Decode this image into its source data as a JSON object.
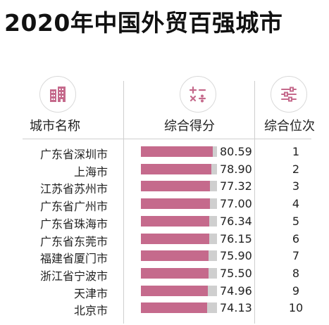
{
  "title": "2020年中国外贸百强城市",
  "icons": {
    "city": "city-buildings-icon",
    "score": "math-operators-icon",
    "rank": "sliders-icon"
  },
  "colors": {
    "bar": "#c56a8c",
    "track": "#cfcfcf",
    "icon": "#c56a8c"
  },
  "headers": {
    "city": "城市名称",
    "score": "综合得分",
    "rank": "综合位次"
  },
  "chart_data": {
    "type": "bar",
    "title": "2020年中国外贸百强城市",
    "orientation": "horizontal",
    "categories": [
      "广东省深圳市",
      "上海市",
      "江苏省苏州市",
      "广东省广州市",
      "广东省珠海市",
      "广东省东莞市",
      "福建省厦门市",
      "浙江省宁波市",
      "天津市",
      "北京市"
    ],
    "values": [
      80.59,
      78.9,
      77.32,
      77.0,
      76.34,
      76.15,
      75.9,
      75.5,
      74.96,
      74.13
    ],
    "value_labels": [
      "80.59",
      "78.90",
      "77.32",
      "77.00",
      "76.34",
      "76.15",
      "75.90",
      "75.50",
      "74.96",
      "74.13"
    ],
    "ranks": [
      "1",
      "2",
      "3",
      "4",
      "5",
      "6",
      "7",
      "8",
      "9",
      "10"
    ],
    "xlim": [
      0,
      85
    ],
    "grid": false
  }
}
